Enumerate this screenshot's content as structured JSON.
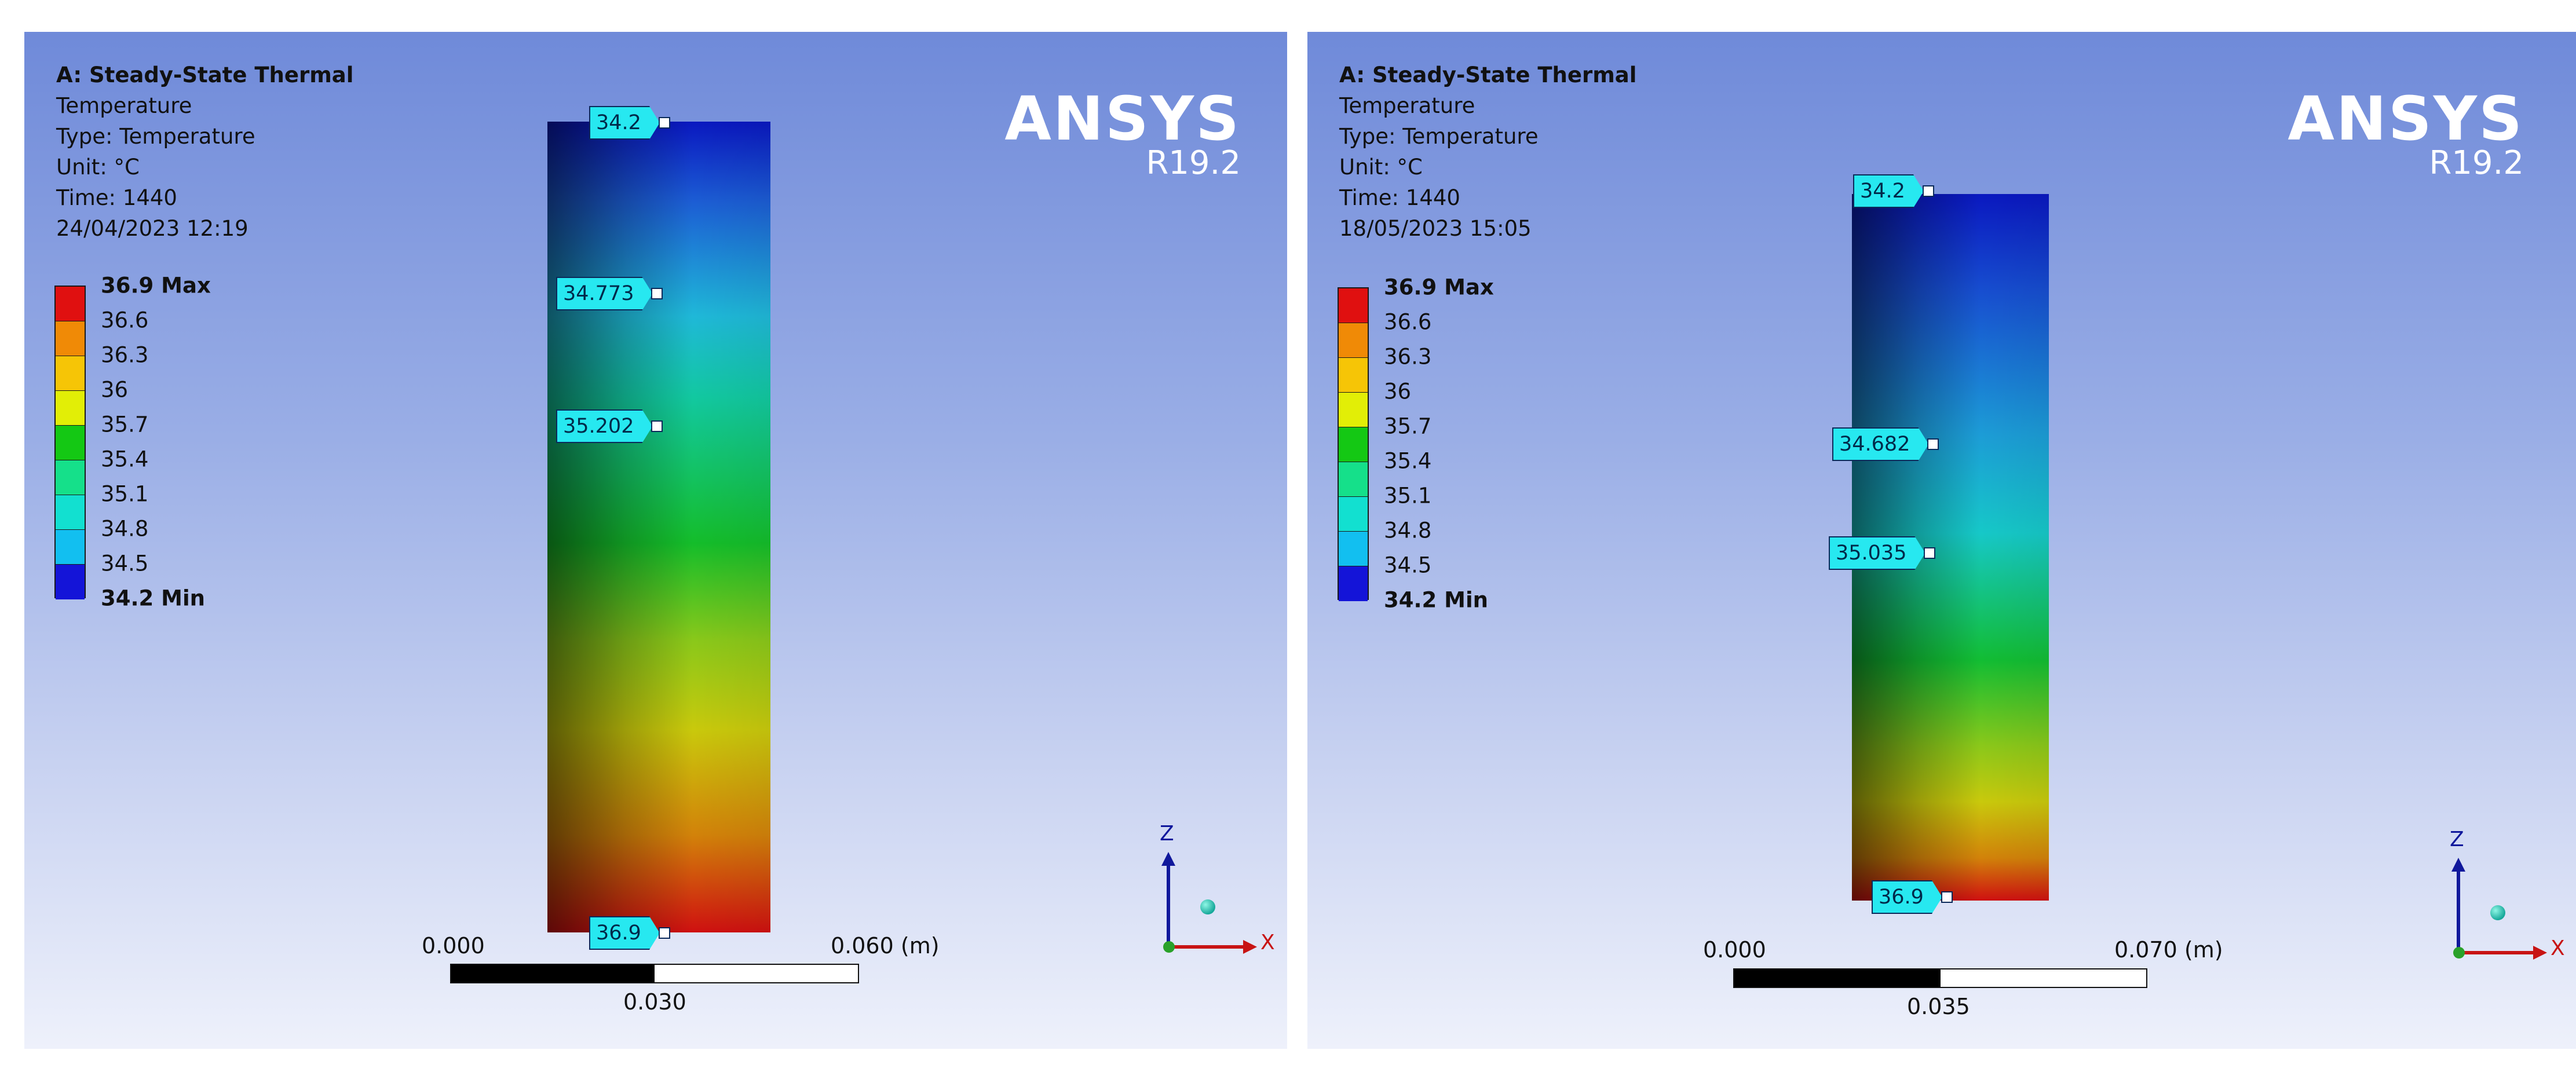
{
  "legend_colors": [
    "#e01010",
    "#f08a06",
    "#f6c506",
    "#e2ee06",
    "#14c814",
    "#15e08a",
    "#12e0d0",
    "#12bff0",
    "#1290e6",
    "#1414d8"
  ],
  "panels": [
    {
      "analysis": "A: Steady-State Thermal",
      "result": "Temperature",
      "type": "Type: Temperature",
      "unit": "Unit: °C",
      "time": "Time: 1440",
      "date": "24/04/2023 12:19",
      "legend_labels": [
        "36.9 Max",
        "36.6",
        "36.3",
        "36",
        "35.7",
        "35.4",
        "35.1",
        "34.8",
        "34.5",
        "34.2 Min"
      ],
      "logo": "ANSYS",
      "version": "R19.2",
      "probes": [
        "34.2",
        "34.773",
        "35.202",
        "36.9"
      ],
      "scale": {
        "left": "0.000",
        "right": "0.060 (m)",
        "mid": "0.030"
      },
      "triad": {
        "z": "Z",
        "x": "X"
      }
    },
    {
      "analysis": "A: Steady-State Thermal",
      "result": "Temperature",
      "type": "Type: Temperature",
      "unit": "Unit: °C",
      "time": "Time: 1440",
      "date": "18/05/2023 15:05",
      "legend_labels": [
        "36.9 Max",
        "36.6",
        "36.3",
        "36",
        "35.7",
        "35.4",
        "35.1",
        "34.8",
        "34.5",
        "34.2 Min"
      ],
      "logo": "ANSYS",
      "version": "R19.2",
      "probes": [
        "34.2",
        "34.682",
        "35.035",
        "36.9"
      ],
      "scale": {
        "left": "0.000",
        "right": "0.070 (m)",
        "mid": "0.035"
      },
      "triad": {
        "z": "Z",
        "x": "X"
      }
    }
  ]
}
